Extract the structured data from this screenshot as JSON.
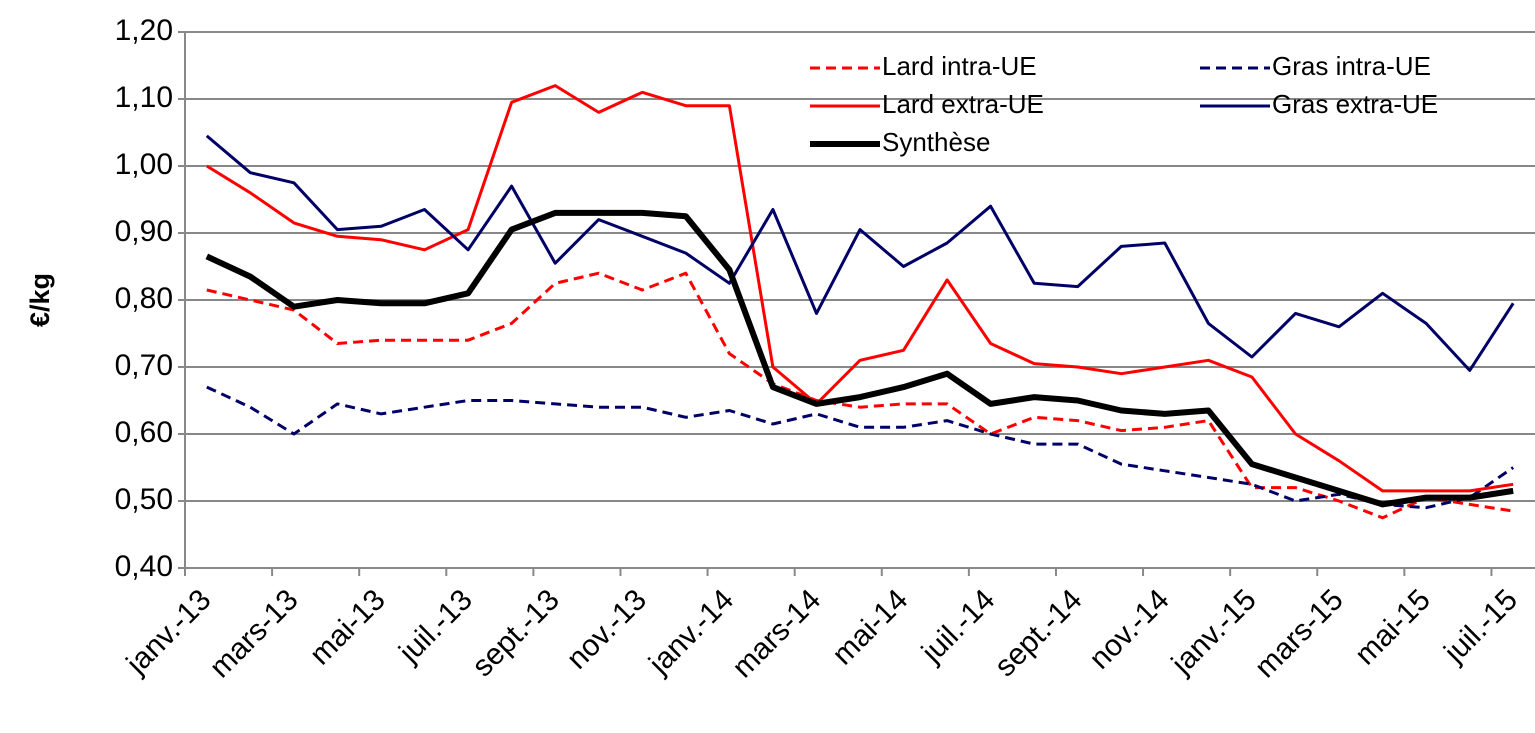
{
  "chart_data": {
    "type": "line",
    "ylabel": "€/kg",
    "categories": [
      "janv.-13",
      null,
      "mars-13",
      null,
      "mai-13",
      null,
      "juil.-13",
      null,
      "sept.-13",
      null,
      "nov.-13",
      null,
      "janv.-14",
      null,
      "mars-14",
      null,
      "mai-14",
      null,
      "juil.-14",
      null,
      "sept.-14",
      null,
      "nov.-14",
      null,
      "janv.-15",
      null,
      "mars-15",
      null,
      "mai-15",
      null,
      "juil.-15"
    ],
    "ylim": [
      0.4,
      1.2
    ],
    "yticks": [
      {
        "value": 0.4,
        "label": "0,40"
      },
      {
        "value": 0.5,
        "label": "0,50"
      },
      {
        "value": 0.6,
        "label": "0,60"
      },
      {
        "value": 0.7,
        "label": "0,70"
      },
      {
        "value": 0.8,
        "label": "0,80"
      },
      {
        "value": 0.9,
        "label": "0,90"
      },
      {
        "value": 1.0,
        "label": "1,00"
      },
      {
        "value": 1.1,
        "label": "1,10"
      },
      {
        "value": 1.2,
        "label": "1,20"
      }
    ],
    "grid": true,
    "legend": "top-right",
    "series": [
      {
        "name": "Lard intra-UE",
        "color": "#ff0000",
        "dashed": true,
        "width": 3,
        "values": [
          0.815,
          0.8,
          0.785,
          0.735,
          0.74,
          0.74,
          0.74,
          0.765,
          0.825,
          0.84,
          0.815,
          0.84,
          0.72,
          0.675,
          0.65,
          0.64,
          0.645,
          0.645,
          0.6,
          0.625,
          0.62,
          0.605,
          0.61,
          0.62,
          0.52,
          0.52,
          0.5,
          0.475,
          0.505,
          0.495,
          0.485
        ]
      },
      {
        "name": "Gras intra-UE",
        "color": "#000066",
        "dashed": true,
        "width": 3,
        "values": [
          0.67,
          0.64,
          0.6,
          0.645,
          0.63,
          0.64,
          0.65,
          0.65,
          0.645,
          0.64,
          0.64,
          0.625,
          0.635,
          0.615,
          0.63,
          0.61,
          0.61,
          0.62,
          0.6,
          0.585,
          0.585,
          0.555,
          0.545,
          0.535,
          0.525,
          0.5,
          0.51,
          0.495,
          0.49,
          0.505,
          0.55
        ]
      },
      {
        "name": "Lard extra-UE",
        "color": "#ff0000",
        "dashed": false,
        "width": 3,
        "values": [
          1.0,
          0.96,
          0.915,
          0.895,
          0.89,
          0.875,
          0.905,
          1.095,
          1.12,
          1.08,
          1.11,
          1.09,
          1.09,
          0.7,
          0.645,
          0.71,
          0.725,
          0.83,
          0.735,
          0.705,
          0.7,
          0.69,
          0.7,
          0.71,
          0.685,
          0.6,
          0.56,
          0.515,
          0.515,
          0.515,
          0.525
        ]
      },
      {
        "name": "Gras extra-UE",
        "color": "#000066",
        "dashed": false,
        "width": 3,
        "values": [
          1.045,
          0.99,
          0.975,
          0.905,
          0.91,
          0.935,
          0.875,
          0.97,
          0.855,
          0.92,
          0.895,
          0.87,
          0.825,
          0.935,
          0.78,
          0.905,
          0.85,
          0.885,
          0.94,
          0.825,
          0.82,
          0.88,
          0.885,
          0.765,
          0.715,
          0.78,
          0.76,
          0.81,
          0.765,
          0.695,
          0.795
        ]
      },
      {
        "name": "Synthèse",
        "color": "#000000",
        "dashed": false,
        "width": 6,
        "values": [
          0.865,
          0.835,
          0.79,
          0.8,
          0.795,
          0.795,
          0.81,
          0.905,
          0.93,
          0.93,
          0.93,
          0.925,
          0.845,
          0.67,
          0.645,
          0.655,
          0.67,
          0.69,
          0.645,
          0.655,
          0.65,
          0.635,
          0.63,
          0.635,
          0.555,
          0.535,
          0.515,
          0.495,
          0.505,
          0.505,
          0.515
        ]
      }
    ]
  }
}
